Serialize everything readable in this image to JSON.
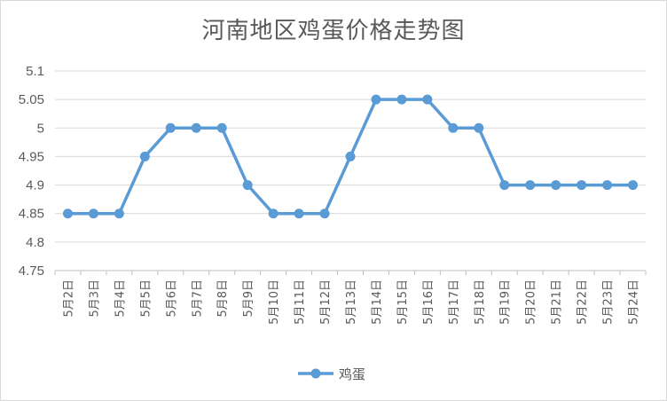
{
  "chart_data": {
    "type": "line",
    "title": "河南地区鸡蛋价格走势图",
    "xlabel": "",
    "ylabel": "",
    "categories": [
      "5月2日",
      "5月3日",
      "5月4日",
      "5月5日",
      "5月6日",
      "5月7日",
      "5月8日",
      "5月9日",
      "5月10日",
      "5月11日",
      "5月12日",
      "5月13日",
      "5月14日",
      "5月15日",
      "5月16日",
      "5月17日",
      "5月18日",
      "5月19日",
      "5月20日",
      "5月21日",
      "5月22日",
      "5月23日",
      "5月24日"
    ],
    "series": [
      {
        "name": "鸡蛋",
        "color": "#5b9bd5",
        "values": [
          4.85,
          4.85,
          4.85,
          4.95,
          5,
          5,
          5,
          4.9,
          4.85,
          4.85,
          4.85,
          4.95,
          5.05,
          5.05,
          5.05,
          5,
          5,
          4.9,
          4.9,
          4.9,
          4.9,
          4.9,
          4.9
        ]
      }
    ],
    "yticks": [
      "4.75",
      "4.8",
      "4.85",
      "4.9",
      "4.95",
      "5",
      "5.05",
      "5.1"
    ],
    "ylim": [
      4.75,
      5.1
    ],
    "grid": true,
    "legend_position": "bottom"
  }
}
